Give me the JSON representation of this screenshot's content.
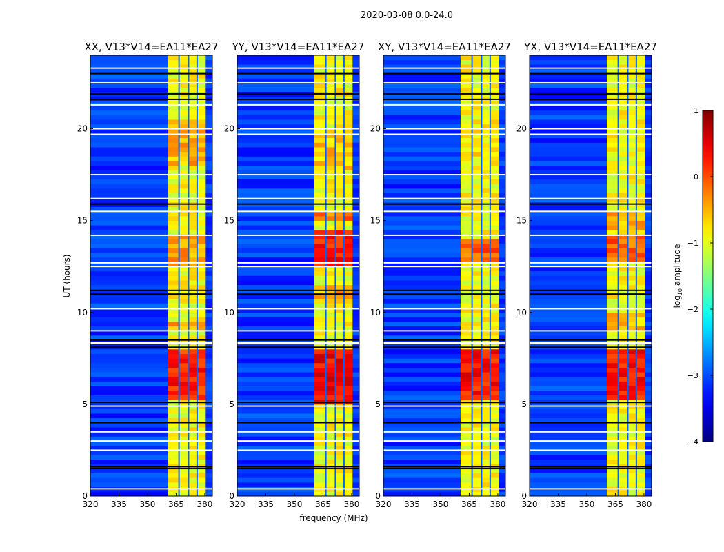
{
  "chart_data": {
    "type": "heatmap",
    "suptitle": "2020-03-08 0.0-24.0",
    "xlabel": "frequency (MHz)",
    "ylabel": "UT (hours)",
    "xlim": [
      320,
      384
    ],
    "ylim": [
      0,
      24
    ],
    "xticks": [
      "320",
      "335",
      "350",
      "365",
      "380"
    ],
    "yticks": [
      "0",
      "5",
      "10",
      "15",
      "20"
    ],
    "xtick_values": [
      320,
      335,
      350,
      365,
      380
    ],
    "ytick_values": [
      0,
      5,
      10,
      15,
      20
    ],
    "colorbar": {
      "label": "log10 amplitude",
      "range": [
        -4,
        1
      ],
      "ticks": [
        "1",
        "0",
        "−1",
        "−2",
        "−3",
        "−4"
      ],
      "tick_values": [
        1,
        0,
        -1,
        -2,
        -3,
        -4
      ],
      "colormap": "jet"
    },
    "background_level": -3.1,
    "band": {
      "range_mhz": [
        360.5,
        380.5
      ],
      "level": -0.9,
      "gaps_mhz": [
        366.5,
        371.5,
        376
      ]
    },
    "flagged_white_hours": [
      0.4,
      2.5,
      3.0,
      3.5,
      4.9,
      8.3,
      8.35,
      9.0,
      10.2,
      12.5,
      12.7,
      14.2,
      15.5,
      16.2,
      17.5,
      19.7,
      20.0,
      21.3,
      22.5,
      23.3
    ],
    "flagged_black_hours": [
      1.5,
      1.6,
      4.0,
      5.1,
      8.1,
      8.5,
      11.0,
      11.2,
      15.9,
      21.6,
      21.9,
      23.0
    ],
    "panels": [
      {
        "title": "XX, V13*V14=EA11*EA27",
        "bright_hours": [
          [
            5.2,
            7.9,
            0.2
          ],
          [
            12.5,
            14.2,
            -0.4
          ],
          [
            18,
            20.5,
            -0.5
          ],
          [
            9,
            9.5,
            -0.5
          ]
        ]
      },
      {
        "title": "YY, V13*V14=EA11*EA27",
        "bright_hours": [
          [
            5.0,
            8.0,
            0.4
          ],
          [
            12.6,
            14.6,
            0.3
          ],
          [
            15,
            15.5,
            -0.2
          ],
          [
            17.8,
            20,
            -0.6
          ],
          [
            10.5,
            11.5,
            -0.5
          ]
        ]
      },
      {
        "title": "XY, V13*V14=EA11*EA27",
        "bright_hours": [
          [
            5.2,
            7.9,
            0.3
          ],
          [
            12.8,
            14.0,
            -0.1
          ],
          [
            18.5,
            20.5,
            -0.8
          ]
        ]
      },
      {
        "title": "YX, V13*V14=EA11*EA27",
        "bright_hours": [
          [
            5.2,
            7.9,
            0.3
          ],
          [
            12.8,
            14.2,
            -0.1
          ],
          [
            14.5,
            15.5,
            -0.5
          ],
          [
            9,
            10,
            -0.6
          ]
        ]
      }
    ]
  }
}
